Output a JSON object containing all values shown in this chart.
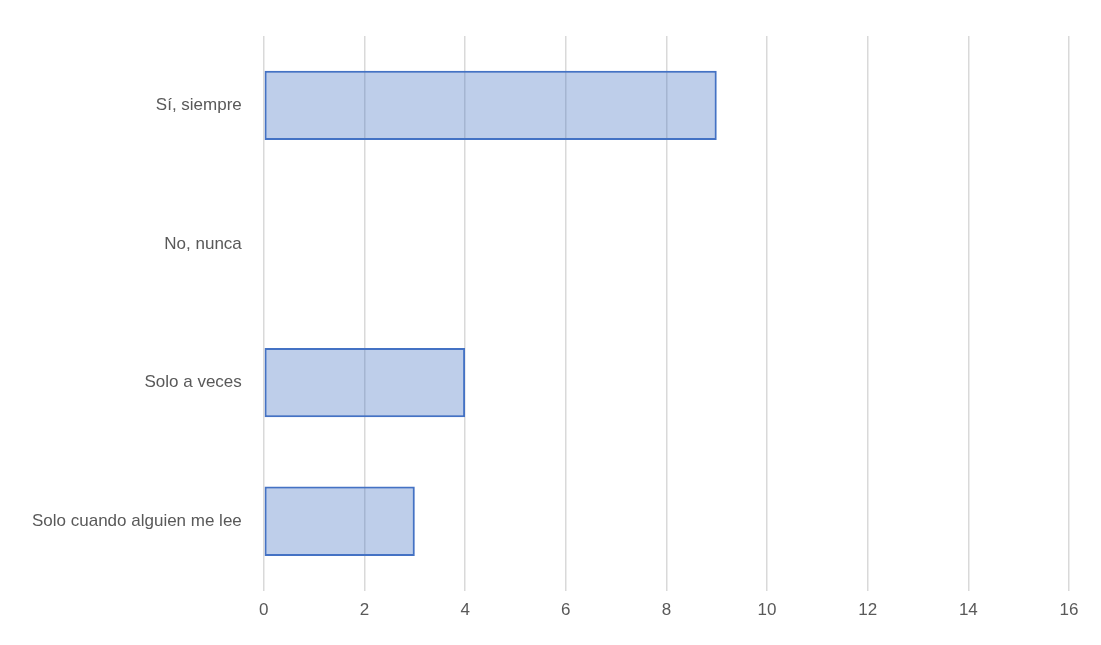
{
  "chart_data": {
    "type": "bar",
    "orientation": "horizontal",
    "categories": [
      "Sí, siempre",
      "No, nunca",
      "Solo a veces",
      "Solo cuando alguien me lee"
    ],
    "values": [
      9,
      0,
      4,
      3
    ],
    "color": "#4472c4",
    "xlim": [
      0,
      16
    ],
    "xticks": [
      0,
      2,
      4,
      6,
      8,
      10,
      12,
      14,
      16
    ],
    "grid": "x"
  }
}
